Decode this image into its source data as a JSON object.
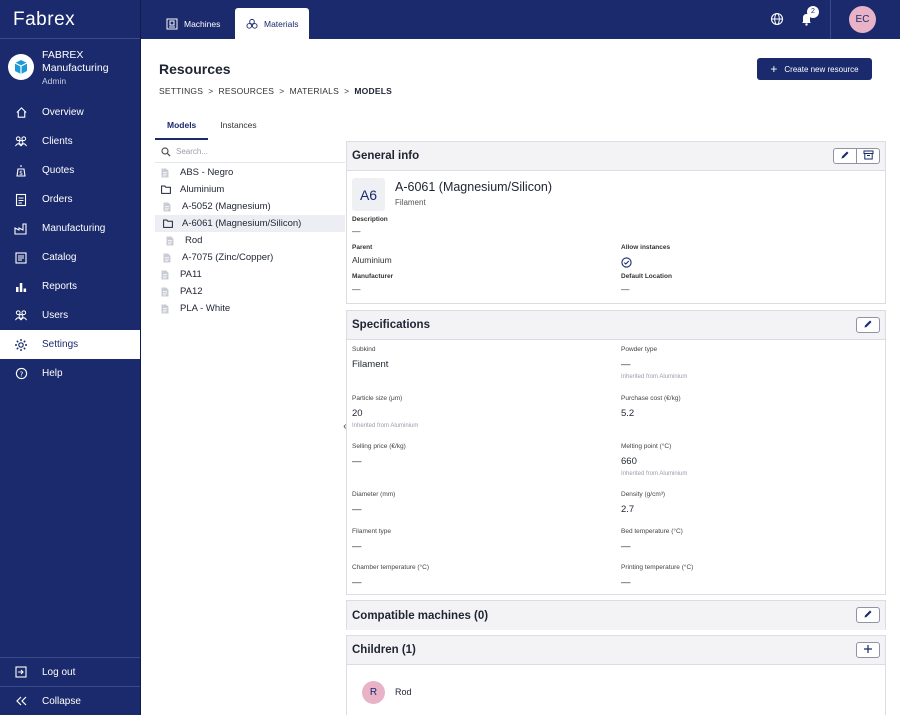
{
  "app": {
    "logo": "Fabrex"
  },
  "org": {
    "name": "FABREX Manufacturing",
    "role": "Admin"
  },
  "nav": {
    "items": [
      {
        "label": "Overview",
        "icon": "home-icon"
      },
      {
        "label": "Clients",
        "icon": "clients-icon"
      },
      {
        "label": "Quotes",
        "icon": "quotes-icon"
      },
      {
        "label": "Orders",
        "icon": "orders-icon"
      },
      {
        "label": "Manufacturing",
        "icon": "factory-icon"
      },
      {
        "label": "Catalog",
        "icon": "catalog-icon"
      },
      {
        "label": "Reports",
        "icon": "chart-icon"
      },
      {
        "label": "Users",
        "icon": "users-icon"
      },
      {
        "label": "Settings",
        "icon": "gear-icon",
        "active": true
      },
      {
        "label": "Help",
        "icon": "help-icon"
      }
    ],
    "logout": "Log out",
    "collapse": "Collapse"
  },
  "topbar": {
    "tabs": [
      {
        "label": "Machines"
      },
      {
        "label": "Materials",
        "active": true
      }
    ],
    "notifications": "2",
    "user_initials": "EC"
  },
  "header": {
    "title": "Resources",
    "breadcrumb": [
      "SETTINGS",
      "RESOURCES",
      "MATERIALS",
      "MODELS"
    ],
    "create_button": "Create new resource"
  },
  "subtabs": [
    "Models",
    "Instances"
  ],
  "tree": {
    "search_placeholder": "Search...",
    "items": [
      {
        "label": "ABS - Negro",
        "type": "file",
        "level": 0
      },
      {
        "label": "Aluminium",
        "type": "folder",
        "level": 0
      },
      {
        "label": "A-5052 (Magnesium)",
        "type": "file",
        "level": 1
      },
      {
        "label": "A-6061 (Magnesium/Silicon)",
        "type": "folder",
        "level": 1,
        "selected": true
      },
      {
        "label": "Rod",
        "type": "file",
        "level": 2
      },
      {
        "label": "A-7075 (Zinc/Copper)",
        "type": "file",
        "level": 1
      },
      {
        "label": "PA11",
        "type": "file",
        "level": 0
      },
      {
        "label": "PA12",
        "type": "file",
        "level": 0
      },
      {
        "label": "PLA - White",
        "type": "file",
        "level": 0
      }
    ]
  },
  "general_info": {
    "title": "General info",
    "badge": "A6",
    "name": "A-6061 (Magnesium/Silicon)",
    "kind": "Filament",
    "description_label": "Description",
    "description": "—",
    "parent_label": "Parent",
    "parent": "Aluminium",
    "allow_instances_label": "Allow instances",
    "manufacturer_label": "Manufacturer",
    "manufacturer": "—",
    "default_location_label": "Default Location",
    "default_location": "—"
  },
  "specifications": {
    "title": "Specifications",
    "fields": [
      {
        "label": "Subkind",
        "value": "Filament",
        "inherited": ""
      },
      {
        "label": "Powder type",
        "value": "—",
        "inherited": "Inherited from Aluminium"
      },
      {
        "label": "Particle size (μm)",
        "value": "20",
        "inherited": "Inherited from Aluminium"
      },
      {
        "label": "Purchase cost (€/kg)",
        "value": "5.2",
        "inherited": ""
      },
      {
        "label": "Selling price (€/kg)",
        "value": "—",
        "inherited": ""
      },
      {
        "label": "Melting point (°C)",
        "value": "660",
        "inherited": "Inherited from Aluminium"
      },
      {
        "label": "Diameter (mm)",
        "value": "—",
        "inherited": ""
      },
      {
        "label": "Density (g/cm³)",
        "value": "2.7",
        "inherited": ""
      },
      {
        "label": "Filament type",
        "value": "—",
        "inherited": ""
      },
      {
        "label": "Bed temperature (°C)",
        "value": "—",
        "inherited": ""
      },
      {
        "label": "Chamber temperature (°C)",
        "value": "—",
        "inherited": ""
      },
      {
        "label": "Printing temperature (°C)",
        "value": "—",
        "inherited": ""
      }
    ]
  },
  "compatible_machines": {
    "title": "Compatible machines (0)"
  },
  "children": {
    "title": "Children (1)",
    "items": [
      {
        "initial": "R",
        "name": "Rod"
      }
    ]
  },
  "colors": {
    "navy": "#1a2a6c",
    "avatar_pink": "#e8b3c7"
  }
}
